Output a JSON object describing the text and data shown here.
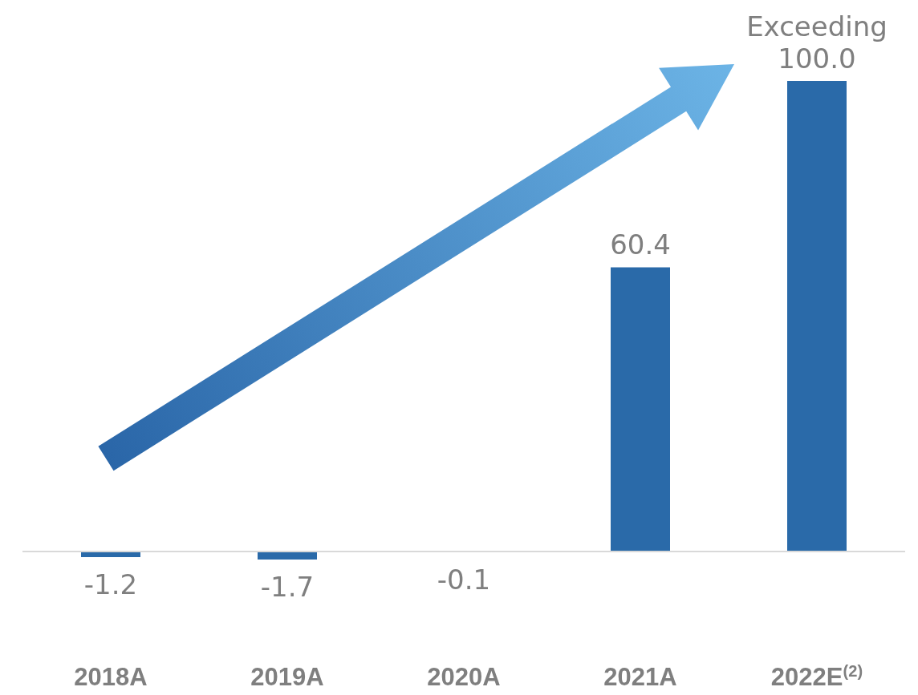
{
  "chart_data": {
    "type": "bar",
    "categories": [
      "2018A",
      "2019A",
      "2020A",
      "2021A",
      "2022E$^{(2)}$"
    ],
    "values": [
      -1.2,
      -1.7,
      -0.1,
      60.4,
      100.0
    ],
    "color": "#2a6aa9",
    "value_labels": [
      "-1.2",
      "-1.7",
      "-0.1",
      "60.4",
      "Exceeding 100.0"
    ]
  }
}
